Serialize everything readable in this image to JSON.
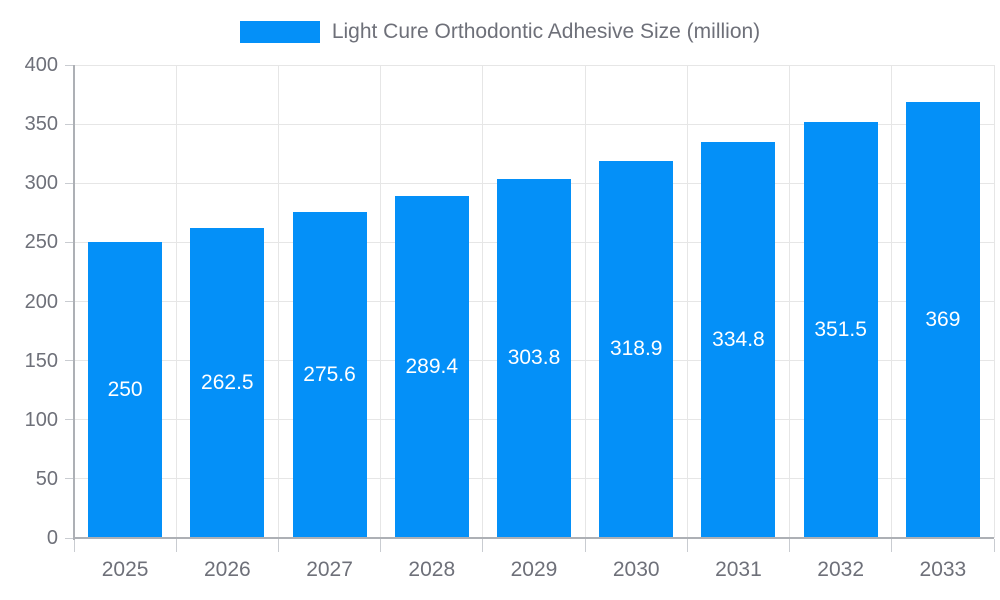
{
  "legend": {
    "label": "Light Cure Orthodontic Adhesive Size (million)"
  },
  "chart_data": {
    "type": "bar",
    "title": "Light Cure Orthodontic Adhesive Size (million)",
    "series_name": "Light Cure Orthodontic Adhesive Size (million)",
    "categories": [
      "2025",
      "2026",
      "2027",
      "2028",
      "2029",
      "2030",
      "2031",
      "2032",
      "2033"
    ],
    "values": [
      250,
      262.5,
      275.6,
      289.4,
      303.8,
      318.9,
      334.8,
      351.5,
      369
    ],
    "value_labels": [
      "250",
      "262.5",
      "275.6",
      "289.4",
      "303.8",
      "318.9",
      "334.8",
      "351.5",
      "369"
    ],
    "xlabel": "",
    "ylabel": "",
    "ylim": [
      0,
      400
    ],
    "yticks": [
      0,
      50,
      100,
      150,
      200,
      250,
      300,
      350,
      400
    ],
    "grid": true,
    "legend_position": "top",
    "bar_label_position": "inside-center",
    "colors": {
      "bar": "#0490F8",
      "bar_label": "#FFFFFF",
      "axis_text": "#6E7079",
      "axis_line": "#ADB0B5",
      "tick": "#C9CCD1",
      "grid": "#E6E6E6",
      "background": "#FFFFFF"
    }
  }
}
